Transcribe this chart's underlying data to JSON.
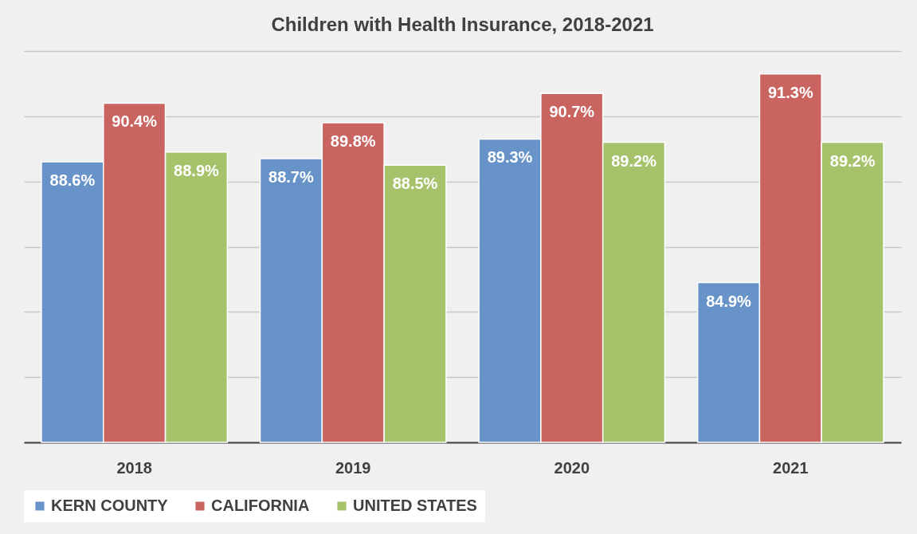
{
  "chart_data": {
    "type": "bar",
    "title": "Children with Health Insurance, 2018-2021",
    "categories": [
      "2018",
      "2019",
      "2020",
      "2021"
    ],
    "series": [
      {
        "name": "KERN COUNTY",
        "color": "#6893c8",
        "values": [
          88.6,
          88.7,
          89.3,
          84.9
        ],
        "value_labels": [
          "88.6%",
          "88.7%",
          "89.3%",
          "84.9%"
        ]
      },
      {
        "name": "CALIFORNIA",
        "color": "#c96461",
        "values": [
          90.4,
          89.8,
          90.7,
          91.3
        ],
        "value_labels": [
          "90.4%",
          "89.8%",
          "90.7%",
          "91.3%"
        ]
      },
      {
        "name": "UNITED STATES",
        "color": "#a6c36c",
        "values": [
          88.9,
          88.5,
          89.2,
          89.2
        ],
        "value_labels": [
          "88.9%",
          "88.5%",
          "89.2%",
          "89.2%"
        ]
      }
    ],
    "ylim": [
      80,
      92
    ],
    "grid": "y",
    "tick_labels": "x",
    "legend": "bottom"
  }
}
